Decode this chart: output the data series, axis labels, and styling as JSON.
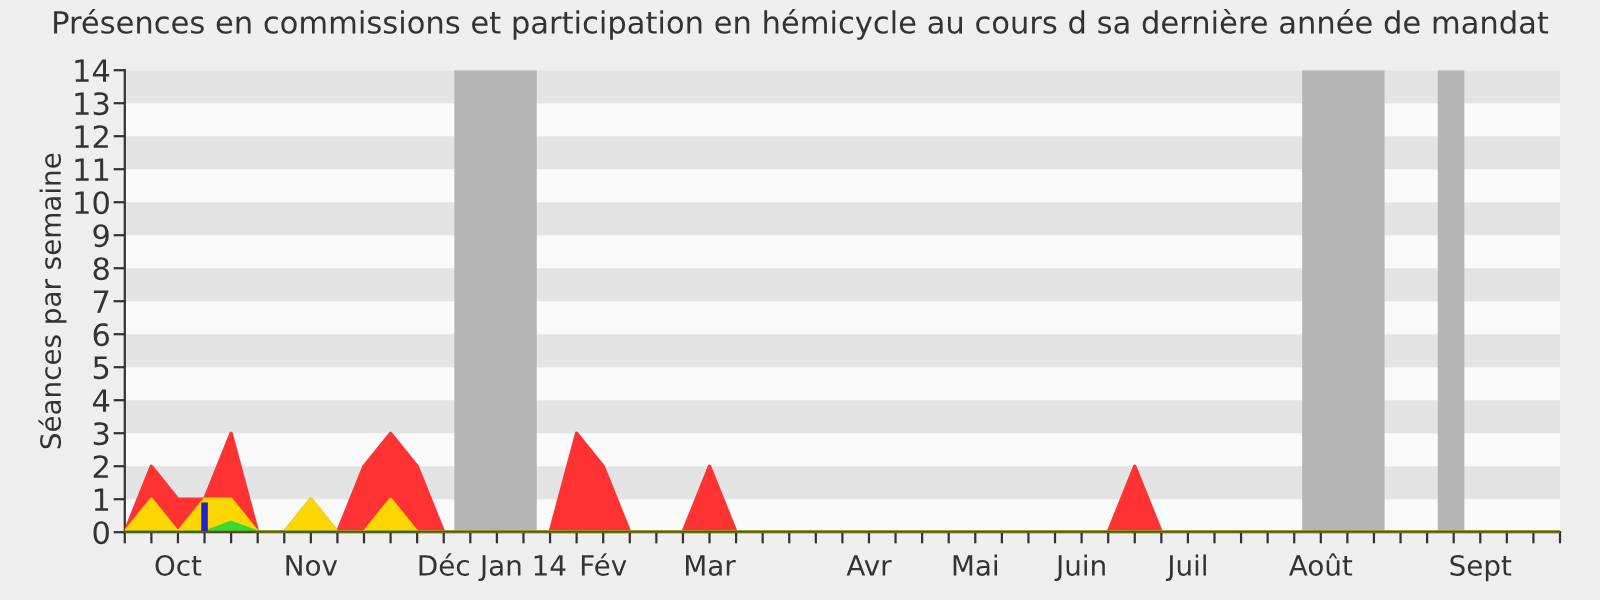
{
  "chart_data": {
    "type": "area",
    "title": "Présences en commissions et participation en hémicycle au cours d sa dernière année de mandat",
    "ylabel": "Séances par semaine",
    "categories": [
      null,
      null,
      "Oct",
      null,
      null,
      null,
      null,
      "Nov",
      null,
      null,
      null,
      null,
      "Déc",
      null,
      null,
      "Jan 14",
      null,
      null,
      "Fév",
      null,
      null,
      null,
      "Mar",
      null,
      null,
      null,
      null,
      null,
      "Avr",
      null,
      null,
      null,
      "Mai",
      null,
      null,
      null,
      "Juin",
      null,
      null,
      null,
      "Juil",
      null,
      null,
      null,
      null,
      "Août",
      null,
      null,
      null,
      null,
      null,
      "Sept",
      null,
      null,
      null
    ],
    "series": [
      {
        "color": "#ff3333",
        "values": [
          0,
          2,
          1,
          1,
          3,
          0,
          0,
          1,
          0,
          2,
          3,
          2,
          0,
          0,
          0,
          0,
          0,
          3,
          2,
          0,
          0,
          0,
          2,
          0,
          0,
          0,
          0,
          0,
          0,
          0,
          0,
          0,
          0,
          0,
          0,
          0,
          0,
          0,
          2,
          0,
          0,
          0,
          0,
          0,
          0,
          0,
          0,
          0,
          0,
          0,
          0,
          0,
          0,
          0,
          0
        ]
      },
      {
        "color": "#ffd700",
        "values": [
          0,
          1,
          0,
          1,
          1,
          0,
          0,
          1,
          0,
          0,
          1,
          0,
          0,
          0,
          0,
          0,
          0,
          0,
          0,
          0,
          0,
          0,
          0,
          0,
          0,
          0,
          0,
          0,
          0,
          0,
          0,
          0,
          0,
          0,
          0,
          0,
          0,
          0,
          0,
          0,
          0,
          0,
          0,
          0,
          0,
          0,
          0,
          0,
          0,
          0,
          0,
          0,
          0,
          0,
          0
        ]
      },
      {
        "color": "#33dd33",
        "values": [
          0,
          0,
          0,
          0,
          0.3,
          0,
          0,
          0,
          0,
          0,
          0,
          0,
          0,
          0,
          0,
          0,
          0,
          0,
          0,
          0,
          0,
          0,
          0,
          0,
          0,
          0,
          0,
          0,
          0,
          0,
          0,
          0,
          0,
          0,
          0,
          0,
          0,
          0,
          0,
          0,
          0,
          0,
          0,
          0,
          0,
          0,
          0,
          0,
          0,
          0,
          0,
          0,
          0,
          0,
          0
        ]
      },
      {
        "type": "bar",
        "color": "#2222cc",
        "values": [
          null,
          null,
          null,
          0.9,
          null,
          null,
          null,
          null,
          null,
          null,
          null,
          null,
          null,
          null,
          null,
          null,
          null,
          null,
          null,
          null,
          null,
          null,
          null,
          null,
          null,
          null,
          null,
          null,
          null,
          null,
          null,
          null,
          null,
          null,
          null,
          null,
          null,
          null,
          null,
          null,
          null,
          null,
          null,
          null,
          null,
          null,
          null,
          null,
          null,
          null,
          null,
          null,
          null,
          null,
          null
        ]
      }
    ],
    "ylim": [
      0,
      14
    ],
    "yticks": [
      0,
      1,
      2,
      3,
      4,
      5,
      6,
      7,
      8,
      9,
      10,
      11,
      12,
      13,
      14
    ],
    "bands": [
      {
        "axis": "y",
        "from": 1,
        "to": 2,
        "color": "#e4e4e4"
      },
      {
        "axis": "y",
        "from": 3,
        "to": 4,
        "color": "#e4e4e4"
      },
      {
        "axis": "y",
        "from": 5,
        "to": 6,
        "color": "#e4e4e4"
      },
      {
        "axis": "y",
        "from": 7,
        "to": 8,
        "color": "#e4e4e4"
      },
      {
        "axis": "y",
        "from": 9,
        "to": 10,
        "color": "#e4e4e4"
      },
      {
        "axis": "y",
        "from": 11,
        "to": 12,
        "color": "#e4e4e4"
      },
      {
        "axis": "y",
        "from": 13,
        "to": 14,
        "color": "#e4e4e4"
      }
    ]
  }
}
